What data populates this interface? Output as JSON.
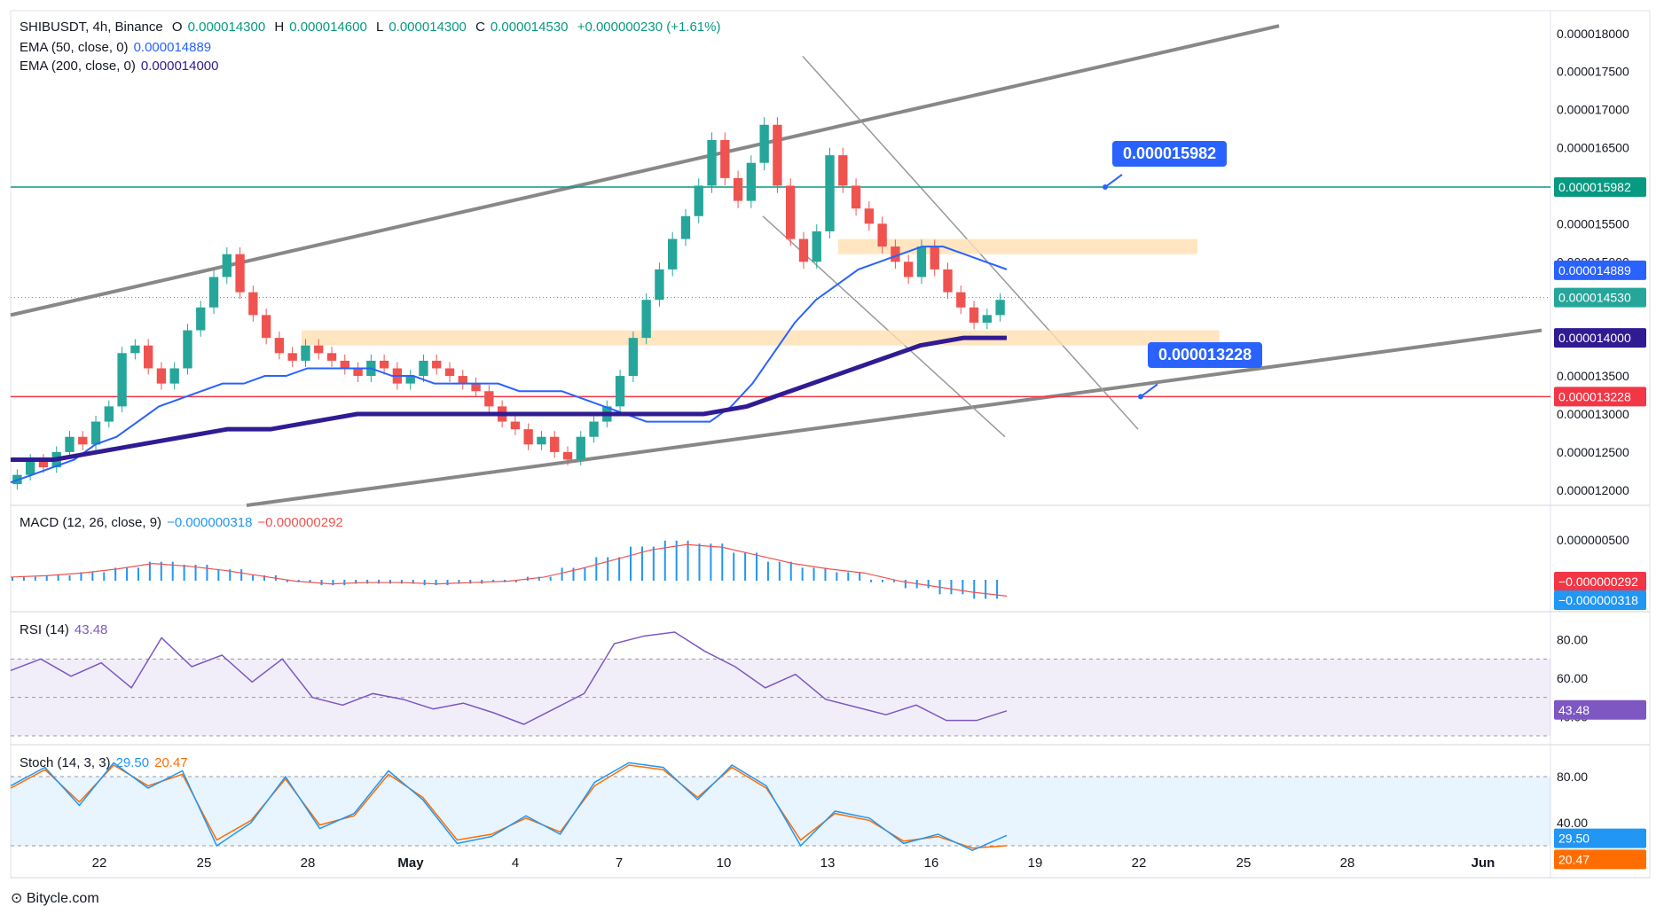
{
  "header": {
    "symbol": "SHIBUSDT, 4h, Binance",
    "o_label": "O",
    "o_val": "0.000014300",
    "h_label": "H",
    "h_val": "0.000014600",
    "l_label": "L",
    "l_val": "0.000014300",
    "c_label": "C",
    "c_val": "0.000014530",
    "change": "+0.000000230 (+1.61%)",
    "ema50_label": "EMA (50, close, 0)",
    "ema50_val": "0.000014889",
    "ema200_label": "EMA (200, close, 0)",
    "ema200_val": "0.000014000",
    "macd_label": "MACD (12, 26, close, 9)",
    "macd_val": "−0.000000318",
    "macd_sig": "−0.000000292",
    "rsi_label": "RSI (14)",
    "rsi_val": "43.48",
    "stoch_label": "Stoch (14, 3, 3)",
    "stoch_k": "29.50",
    "stoch_d": "20.47"
  },
  "colors": {
    "up": "#26a69a",
    "down": "#ef5350",
    "ema50": "#2962ff",
    "ema200": "#311b92",
    "green_level": "#089981",
    "red_level": "#f23645",
    "channel": "#888888",
    "zone": "#ffe0b2",
    "rsi": "#7e57c2",
    "macd_hist": "#2196f3",
    "stoch_k": "#2196f3",
    "stoch_d": "#ff6d00"
  },
  "price_axis": {
    "ticks": [
      "0.000018000",
      "0.000017500",
      "0.000017000",
      "0.000016500",
      "0.000016000",
      "0.000015500",
      "0.000015000",
      "0.000014500",
      "0.000014000",
      "0.000013500",
      "0.000013000",
      "0.000012500",
      "0.000012000"
    ]
  },
  "time_axis": {
    "ticks": [
      "22",
      "25",
      "28",
      "May",
      "4",
      "7",
      "10",
      "13",
      "16",
      "19",
      "22",
      "25",
      "28",
      "Jun"
    ]
  },
  "price_tags": {
    "green": "0.000015982",
    "ema50": "0.000014889",
    "last": "0.000014530",
    "ema200": "0.000014000",
    "red": "0.000013228"
  },
  "callouts": {
    "upper": "0.000015982",
    "lower": "0.000013228"
  },
  "macd_axis": {
    "tick": "0.000000500",
    "tag_sig": "−0.000000292",
    "tag_macd": "−0.000000318"
  },
  "rsi_axis": {
    "ticks": [
      "80.00",
      "60.00",
      "40.00"
    ],
    "tag": "43.48"
  },
  "stoch_axis": {
    "ticks": [
      "80.00",
      "40.00"
    ],
    "tag_k": "29.50",
    "tag_d": "20.47"
  },
  "footer": {
    "brand": "Bitycle.com"
  },
  "chart_data": {
    "type": "candlestick",
    "title": "SHIBUSDT, 4h, Binance",
    "x_start": "Apr 19",
    "x_end": "May 18",
    "ylim": [
      1.18e-05,
      1.83e-05
    ],
    "close": [
      1.22e-05,
      1.24e-05,
      1.23e-05,
      1.25e-05,
      1.27e-05,
      1.26e-05,
      1.29e-05,
      1.31e-05,
      1.38e-05,
      1.39e-05,
      1.36e-05,
      1.34e-05,
      1.36e-05,
      1.41e-05,
      1.44e-05,
      1.48e-05,
      1.51e-05,
      1.46e-05,
      1.43e-05,
      1.4e-05,
      1.38e-05,
      1.37e-05,
      1.39e-05,
      1.38e-05,
      1.37e-05,
      1.36e-05,
      1.35e-05,
      1.37e-05,
      1.36e-05,
      1.34e-05,
      1.35e-05,
      1.37e-05,
      1.36e-05,
      1.35e-05,
      1.34e-05,
      1.33e-05,
      1.31e-05,
      1.29e-05,
      1.28e-05,
      1.26e-05,
      1.27e-05,
      1.25e-05,
      1.24e-05,
      1.27e-05,
      1.29e-05,
      1.31e-05,
      1.35e-05,
      1.4e-05,
      1.45e-05,
      1.49e-05,
      1.53e-05,
      1.56e-05,
      1.6e-05,
      1.66e-05,
      1.61e-05,
      1.58e-05,
      1.63e-05,
      1.68e-05,
      1.6e-05,
      1.53e-05,
      1.5e-05,
      1.54e-05,
      1.64e-05,
      1.6e-05,
      1.57e-05,
      1.55e-05,
      1.52e-05,
      1.5e-05,
      1.48e-05,
      1.52e-05,
      1.49e-05,
      1.46e-05,
      1.44e-05,
      1.42e-05,
      1.43e-05,
      1.45e-05
    ],
    "ema50": [
      1.21e-05,
      1.22e-05,
      1.23e-05,
      1.24e-05,
      1.26e-05,
      1.27e-05,
      1.29e-05,
      1.31e-05,
      1.32e-05,
      1.33e-05,
      1.34e-05,
      1.34e-05,
      1.35e-05,
      1.35e-05,
      1.36e-05,
      1.36e-05,
      1.36e-05,
      1.36e-05,
      1.35e-05,
      1.35e-05,
      1.34e-05,
      1.34e-05,
      1.34e-05,
      1.34e-05,
      1.33e-05,
      1.33e-05,
      1.33e-05,
      1.32e-05,
      1.31e-05,
      1.3e-05,
      1.29e-05,
      1.29e-05,
      1.29e-05,
      1.29e-05,
      1.31e-05,
      1.34e-05,
      1.38e-05,
      1.42e-05,
      1.45e-05,
      1.47e-05,
      1.49e-05,
      1.5e-05,
      1.51e-05,
      1.52e-05,
      1.52e-05,
      1.51e-05,
      1.5e-05,
      1.49e-05
    ],
    "ema200": [
      1.24e-05,
      1.24e-05,
      1.25e-05,
      1.26e-05,
      1.27e-05,
      1.28e-05,
      1.28e-05,
      1.29e-05,
      1.3e-05,
      1.3e-05,
      1.3e-05,
      1.3e-05,
      1.3e-05,
      1.3e-05,
      1.3e-05,
      1.3e-05,
      1.3e-05,
      1.31e-05,
      1.33e-05,
      1.35e-05,
      1.37e-05,
      1.39e-05,
      1.4e-05,
      1.4e-05
    ],
    "levels": [
      {
        "name": "resistance",
        "value": 1.5982e-05
      },
      {
        "name": "support",
        "value": 1.3228e-05
      }
    ],
    "macd_hist": [
      0.02,
      0.03,
      0.05,
      0.08,
      0.12,
      0.1,
      0.07,
      0.03,
      -0.01,
      -0.03,
      -0.02,
      -0.02,
      -0.03,
      -0.02,
      -0.01,
      0.02,
      0.08,
      0.15,
      0.22,
      0.26,
      0.24,
      0.18,
      0.12,
      0.08,
      0.05,
      -0.01,
      -0.05,
      -0.09,
      -0.12
    ],
    "rsi": [
      64,
      70,
      61,
      68,
      55,
      81,
      66,
      72,
      58,
      70,
      50,
      46,
      52,
      49,
      44,
      47,
      42,
      36,
      44,
      52,
      78,
      82,
      84,
      74,
      66,
      55,
      62,
      49,
      45,
      41,
      46,
      38,
      38,
      43
    ],
    "stoch_k": [
      72,
      88,
      55,
      92,
      70,
      85,
      20,
      40,
      80,
      35,
      48,
      85,
      60,
      22,
      28,
      46,
      30,
      75,
      92,
      88,
      60,
      90,
      72,
      20,
      50,
      44,
      22,
      30,
      16,
      29
    ],
    "stoch_d": [
      70,
      86,
      58,
      90,
      72,
      82,
      25,
      42,
      78,
      38,
      46,
      82,
      62,
      25,
      30,
      44,
      32,
      72,
      90,
      86,
      62,
      88,
      70,
      25,
      48,
      42,
      24,
      28,
      18,
      20
    ]
  }
}
